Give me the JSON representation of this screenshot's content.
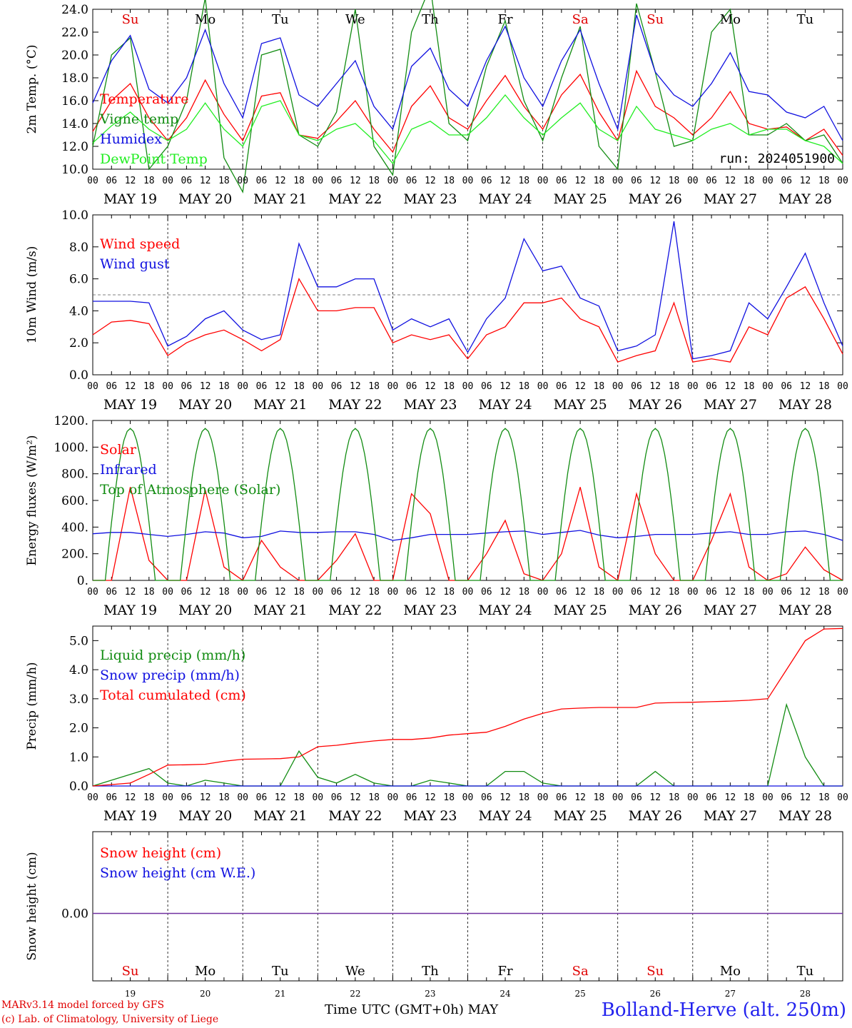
{
  "header": {},
  "chart_data": [
    {
      "type": "line",
      "id": "temperature",
      "ylabel": "2m Temp. (°C)",
      "ylim": [
        10,
        24
      ],
      "yticks": [
        "10.0",
        "12.0",
        "14.0",
        "16.0",
        "18.0",
        "20.0",
        "22.0",
        "24.0"
      ],
      "x_hours": [
        0,
        6,
        12,
        18,
        24,
        30,
        36,
        42,
        48,
        54,
        60,
        66,
        72,
        78,
        84,
        90,
        96,
        102,
        108,
        114,
        120,
        126,
        132,
        138,
        144,
        150,
        156,
        162,
        168,
        174,
        180,
        186,
        192,
        198,
        204,
        210,
        216,
        222,
        228,
        234,
        240
      ],
      "weekday_labels": [
        "Su",
        "Mo",
        "Tu",
        "We",
        "Th",
        "Fr",
        "Sa",
        "Su",
        "Mo",
        "Tu"
      ],
      "weekday_colors": [
        "#e00000",
        "#000000",
        "#000000",
        "#000000",
        "#000000",
        "#000000",
        "#e00000",
        "#e00000",
        "#000000",
        "#000000"
      ],
      "annotation": "run: 2024051900",
      "series": [
        {
          "name": "Temperature",
          "color": "#ff0000",
          "values": [
            13.3,
            16.0,
            17.5,
            14.5,
            12.5,
            14.5,
            17.8,
            14.8,
            12.5,
            16.4,
            16.7,
            13.0,
            12.7,
            14.2,
            16.0,
            13.5,
            11.5,
            15.5,
            17.3,
            14.5,
            13.5,
            16.0,
            18.2,
            15.5,
            13.5,
            16.5,
            18.3,
            15.0,
            12.5,
            18.6,
            15.5,
            14.5,
            13.0,
            14.5,
            16.8,
            14.0,
            13.5,
            13.7,
            12.5,
            13.5,
            11.2
          ]
        },
        {
          "name": "Vigne temp",
          "color": "#128c12",
          "values": [
            12.0,
            20.0,
            21.5,
            10.0,
            12.0,
            16.0,
            25.0,
            11.0,
            8.0,
            20.0,
            20.5,
            13.0,
            12.0,
            15.0,
            24.0,
            12.0,
            9.5,
            22.0,
            26.0,
            14.0,
            12.5,
            19.0,
            23.0,
            16.0,
            12.5,
            18.0,
            22.5,
            12.0,
            10.0,
            24.5,
            18.5,
            12.0,
            12.5,
            22.0,
            24.0,
            13.0,
            13.0,
            14.0,
            12.5,
            13.0,
            10.5
          ]
        },
        {
          "name": "Humidex",
          "color": "#1010e0",
          "values": [
            15.8,
            19.5,
            21.7,
            17.0,
            15.8,
            18.0,
            22.2,
            17.5,
            14.5,
            21.0,
            21.5,
            16.5,
            15.5,
            17.5,
            19.5,
            15.5,
            13.5,
            19.0,
            20.6,
            17.0,
            15.5,
            19.5,
            22.5,
            18.0,
            15.5,
            19.5,
            22.2,
            17.5,
            13.5,
            23.5,
            18.5,
            16.5,
            15.5,
            17.5,
            20.2,
            16.8,
            16.5,
            15.0,
            14.5,
            15.5,
            12.5
          ]
        },
        {
          "name": "DewPoint Temp",
          "color": "#22ee22",
          "values": [
            12.3,
            13.8,
            15.0,
            13.5,
            12.5,
            13.5,
            15.8,
            13.5,
            12.0,
            15.5,
            16.0,
            13.0,
            12.5,
            13.5,
            14.0,
            12.5,
            10.5,
            13.5,
            14.2,
            13.0,
            13.0,
            14.5,
            16.5,
            14.5,
            13.0,
            14.5,
            15.8,
            13.5,
            12.5,
            15.5,
            13.5,
            13.0,
            12.5,
            13.5,
            14.0,
            13.0,
            13.5,
            13.5,
            12.5,
            12.0,
            10.5
          ]
        }
      ]
    },
    {
      "type": "line",
      "id": "wind",
      "ylabel": "10m Wind (m/s)",
      "ylim": [
        0,
        10
      ],
      "yticks": [
        "0.0",
        "2.0",
        "4.0",
        "6.0",
        "8.0",
        "10.0"
      ],
      "reference_line": 5,
      "series": [
        {
          "name": "Wind speed",
          "color": "#ff0000",
          "values": [
            2.5,
            3.3,
            3.4,
            3.2,
            1.2,
            2.0,
            2.5,
            2.8,
            2.2,
            1.5,
            2.2,
            6.0,
            4.0,
            4.0,
            4.2,
            4.2,
            2.0,
            2.5,
            2.2,
            2.5,
            1.0,
            2.5,
            3.0,
            4.5,
            4.5,
            4.8,
            3.5,
            3.0,
            0.8,
            1.2,
            1.5,
            4.5,
            0.8,
            1.0,
            0.8,
            3.0,
            2.5,
            4.8,
            5.5,
            3.5,
            1.3
          ]
        },
        {
          "name": "Wind gust",
          "color": "#1010e0",
          "values": [
            4.6,
            4.6,
            4.6,
            4.5,
            1.8,
            2.4,
            3.5,
            4.0,
            2.8,
            2.2,
            2.5,
            8.2,
            5.5,
            5.5,
            6.0,
            6.0,
            2.8,
            3.5,
            3.0,
            3.5,
            1.4,
            3.5,
            4.8,
            8.5,
            6.5,
            6.8,
            4.8,
            4.3,
            1.5,
            1.8,
            2.5,
            9.6,
            1.0,
            1.2,
            1.5,
            4.5,
            3.5,
            5.5,
            7.6,
            4.5,
            1.8
          ]
        }
      ]
    },
    {
      "type": "line",
      "id": "energy",
      "ylabel": "Energy fluxes (W/m²)",
      "ylim": [
        0,
        1200
      ],
      "yticks": [
        "0.",
        "200.",
        "400.",
        "600.",
        "800.",
        "1000.",
        "1200."
      ],
      "series": [
        {
          "name": "Solar",
          "color": "#ff0000",
          "values": [
            0,
            0,
            700,
            150,
            0,
            0,
            680,
            100,
            0,
            300,
            100,
            0,
            0,
            150,
            350,
            0,
            0,
            650,
            500,
            0,
            0,
            200,
            450,
            50,
            0,
            200,
            700,
            100,
            0,
            650,
            200,
            0,
            0,
            300,
            650,
            100,
            0,
            50,
            250,
            80,
            0
          ]
        },
        {
          "name": "Infrared",
          "color": "#1010e0",
          "values": [
            350,
            360,
            360,
            345,
            330,
            345,
            365,
            355,
            320,
            330,
            370,
            360,
            360,
            365,
            365,
            345,
            300,
            320,
            345,
            345,
            345,
            355,
            365,
            370,
            345,
            360,
            375,
            340,
            320,
            330,
            345,
            345,
            345,
            355,
            365,
            345,
            345,
            365,
            370,
            345,
            300
          ]
        },
        {
          "name": "Top of Atmosphere (Solar)",
          "color": "#128c12"
        }
      ]
    },
    {
      "type": "line",
      "id": "precip",
      "ylabel": "Precip (mm/h)",
      "ylim": [
        0,
        5.5
      ],
      "yticks": [
        "0.0",
        "1.0",
        "2.0",
        "3.0",
        "4.0",
        "5.0"
      ],
      "series": [
        {
          "name": "Liquid precip (mm/h)",
          "color": "#128c12",
          "values": [
            0,
            0.2,
            0.4,
            0.6,
            0.1,
            0,
            0.2,
            0.1,
            0,
            0,
            0,
            1.2,
            0.3,
            0.1,
            0.4,
            0.1,
            0,
            0,
            0.2,
            0.1,
            0,
            0,
            0.5,
            0.5,
            0.1,
            0,
            0,
            0,
            0,
            0,
            0.5,
            0,
            0,
            0,
            0,
            0,
            0,
            2.8,
            1.0,
            0,
            0
          ]
        },
        {
          "name": "Snow precip (mm/h)",
          "color": "#1010e0",
          "values": [
            0,
            0,
            0,
            0,
            0,
            0,
            0,
            0,
            0,
            0,
            0,
            0,
            0,
            0,
            0,
            0,
            0,
            0,
            0,
            0,
            0,
            0,
            0,
            0,
            0,
            0,
            0,
            0,
            0,
            0,
            0,
            0,
            0,
            0,
            0,
            0,
            0,
            0,
            0,
            0,
            0
          ]
        },
        {
          "name": "Total cumulated (cm)",
          "color": "#ff0000",
          "values": [
            0,
            0.05,
            0.1,
            0.4,
            0.72,
            0.73,
            0.75,
            0.85,
            0.92,
            0.93,
            0.94,
            1.0,
            1.35,
            1.4,
            1.48,
            1.55,
            1.6,
            1.6,
            1.65,
            1.75,
            1.8,
            1.85,
            2.05,
            2.3,
            2.5,
            2.65,
            2.68,
            2.7,
            2.7,
            2.7,
            2.85,
            2.87,
            2.88,
            2.9,
            2.92,
            2.95,
            3.0,
            4.0,
            5.0,
            5.4,
            5.42
          ]
        }
      ]
    },
    {
      "type": "line",
      "id": "snow",
      "ylabel": "Snow height (cm)",
      "yticks": [
        "0.00"
      ],
      "series": [
        {
          "name": "Snow height (cm)",
          "color": "#ff0000"
        },
        {
          "name": "Snow height (cm W.E.)",
          "color": "#1010e0"
        }
      ]
    }
  ],
  "x_hour_labels": [
    "00",
    "06",
    "12",
    "18"
  ],
  "date_labels": [
    "MAY 19",
    "MAY 20",
    "MAY 21",
    "MAY 22",
    "MAY 23",
    "MAY 24",
    "MAY 25",
    "MAY 26",
    "MAY 27",
    "MAY 28"
  ],
  "bottom_day_numbers": [
    "19",
    "20",
    "21",
    "22",
    "23",
    "24",
    "25",
    "26",
    "27",
    "28"
  ],
  "footer": {
    "model_line": "MARv3.14 model forced by GFS",
    "lab_line": "(c) Lab. of Climatology, University of Liege",
    "time_label": "Time UTC (GMT+0h) MAY",
    "location": "Bolland-Herve (alt. 250m)"
  }
}
